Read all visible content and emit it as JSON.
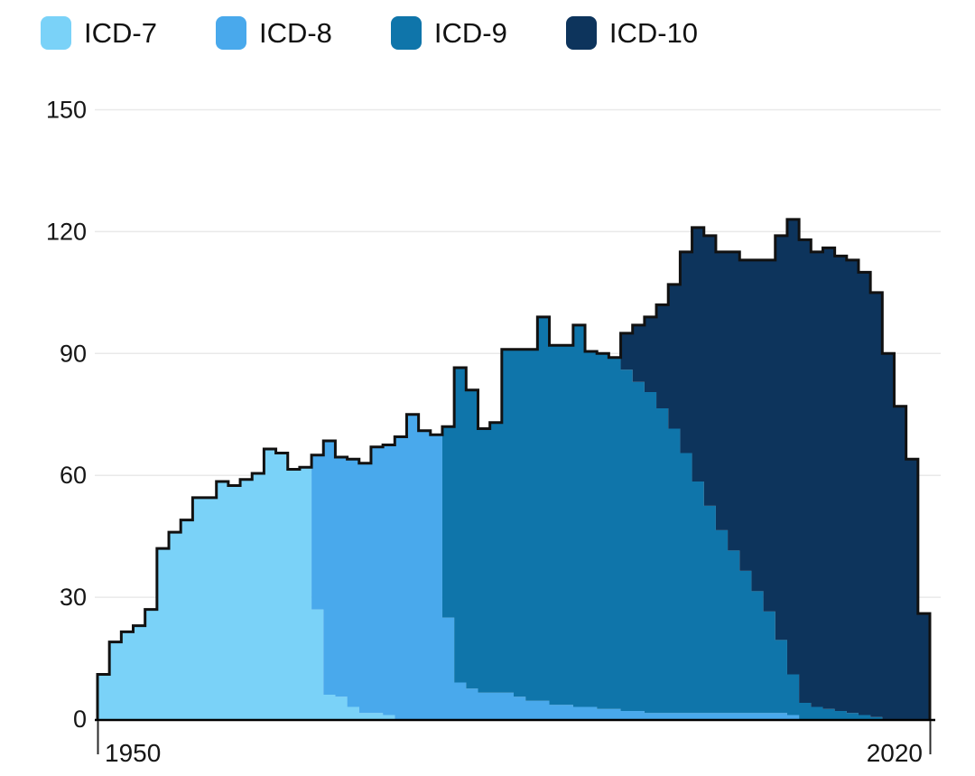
{
  "legend": {
    "items": [
      {
        "label": "ICD-7",
        "color": "#7ad2f8"
      },
      {
        "label": "ICD-8",
        "color": "#49a9ec"
      },
      {
        "label": "ICD-9",
        "color": "#0f75aa"
      },
      {
        "label": "ICD-10",
        "color": "#0d345c"
      }
    ]
  },
  "chart_data": {
    "type": "area",
    "subtype": "stacked-step",
    "title": "",
    "xlabel": "",
    "ylabel": "",
    "x_start_year": 1950,
    "x_end_year": 2020,
    "x_tick_labels": [
      "1950",
      "2020"
    ],
    "x_tick_years": [
      1950,
      2020
    ],
    "y_ticks": [
      0,
      30,
      60,
      90,
      120,
      150
    ],
    "y_tick_labels": [
      "0",
      "30",
      "60",
      "90",
      "120",
      "150"
    ],
    "ylim": [
      0,
      150
    ],
    "grid": true,
    "legend_position": "top-left",
    "outline_color": "#111111",
    "gridline_color": "#e9e9e9",
    "axis_color": "#000000",
    "text_color": "#161616",
    "years": [
      1950,
      1951,
      1952,
      1953,
      1954,
      1955,
      1956,
      1957,
      1958,
      1959,
      1960,
      1961,
      1962,
      1963,
      1964,
      1965,
      1966,
      1967,
      1968,
      1969,
      1970,
      1971,
      1972,
      1973,
      1974,
      1975,
      1976,
      1977,
      1978,
      1979,
      1980,
      1981,
      1982,
      1983,
      1984,
      1985,
      1986,
      1987,
      1988,
      1989,
      1990,
      1991,
      1992,
      1993,
      1994,
      1995,
      1996,
      1997,
      1998,
      1999,
      2000,
      2001,
      2002,
      2003,
      2004,
      2005,
      2006,
      2007,
      2008,
      2009,
      2010,
      2011,
      2012,
      2013,
      2014,
      2015,
      2016,
      2017,
      2018,
      2019
    ],
    "series": [
      {
        "name": "ICD-7",
        "color": "#7ad2f8",
        "values": [
          11,
          19,
          21.5,
          23,
          27,
          42,
          46,
          49,
          54.5,
          54.5,
          58.5,
          57.5,
          59,
          60.5,
          66.5,
          65.5,
          61.5,
          62,
          27,
          6,
          5.5,
          3,
          1.5,
          1.5,
          1,
          0,
          0,
          0,
          0,
          0,
          0,
          0,
          0,
          0,
          0,
          0,
          0,
          0,
          0,
          0,
          0,
          0,
          0,
          0,
          0,
          0,
          0,
          0,
          0,
          0,
          0,
          0,
          0,
          0,
          0,
          0,
          0,
          0,
          0,
          0,
          0,
          0,
          0,
          0,
          0,
          0,
          0,
          0,
          0,
          0
        ]
      },
      {
        "name": "ICD-8",
        "color": "#49a9ec",
        "values": [
          0,
          0,
          0,
          0,
          0,
          0,
          0,
          0,
          0,
          0,
          0,
          0,
          0,
          0,
          0,
          0,
          0,
          0,
          38,
          62.5,
          59,
          61,
          61.5,
          65.5,
          66.5,
          69.5,
          75,
          71,
          70,
          25,
          9,
          7.5,
          6.5,
          6.5,
          6.5,
          5.5,
          4.5,
          4.5,
          3.5,
          3.5,
          3,
          3,
          2.5,
          2.5,
          2,
          2,
          1.5,
          1.5,
          1.5,
          1.5,
          1.5,
          1.5,
          1.5,
          1.5,
          1.5,
          1.5,
          1.5,
          1.5,
          1,
          0,
          0,
          0,
          0,
          0,
          0,
          0,
          0,
          0,
          0,
          0
        ]
      },
      {
        "name": "ICD-9",
        "color": "#0f75aa",
        "values": [
          0,
          0,
          0,
          0,
          0,
          0,
          0,
          0,
          0,
          0,
          0,
          0,
          0,
          0,
          0,
          0,
          0,
          0,
          0,
          0,
          0,
          0,
          0,
          0,
          0,
          0,
          0,
          0,
          0,
          47,
          77.5,
          73.5,
          65,
          66.5,
          84.5,
          85.5,
          86.5,
          94.5,
          88.5,
          88.5,
          94,
          87.5,
          87.5,
          86.5,
          84,
          81,
          79,
          75,
          70,
          64,
          57,
          51,
          45,
          40,
          35,
          30,
          25,
          18,
          10,
          4,
          3,
          2.5,
          2,
          1.5,
          1,
          0.5,
          0,
          0,
          0,
          0
        ]
      },
      {
        "name": "ICD-10",
        "color": "#0d345c",
        "values": [
          0,
          0,
          0,
          0,
          0,
          0,
          0,
          0,
          0,
          0,
          0,
          0,
          0,
          0,
          0,
          0,
          0,
          0,
          0,
          0,
          0,
          0,
          0,
          0,
          0,
          0,
          0,
          0,
          0,
          0,
          0,
          0,
          0,
          0,
          0,
          0,
          0,
          0,
          0,
          0,
          0,
          0,
          0,
          0,
          9,
          14,
          18.5,
          25.5,
          35.5,
          49.5,
          62.5,
          66.5,
          68.5,
          73.5,
          76.5,
          81.5,
          86.5,
          99.5,
          112,
          114,
          112,
          113.5,
          112,
          111.5,
          109,
          104.5,
          90,
          77,
          64,
          26
        ]
      }
    ]
  }
}
